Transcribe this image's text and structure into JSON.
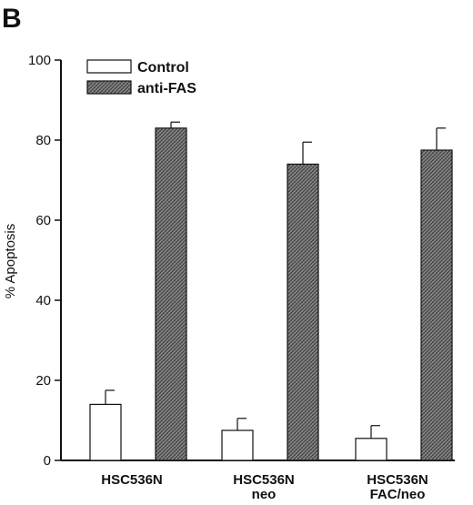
{
  "panel_label": "B",
  "colors": {
    "control_fill": "#ffffff",
    "anti_fas_fill": "#7a7a7a",
    "stroke": "#111111"
  },
  "chart_data": {
    "type": "bar",
    "title": "",
    "xlabel": "",
    "ylabel": "% Apoptosis",
    "ylim": [
      0,
      100
    ],
    "yticks": [
      "0",
      "20",
      "40",
      "60",
      "80",
      "100"
    ],
    "categories": [
      [
        "HSC536N"
      ],
      [
        "HSC536N",
        "neo"
      ],
      [
        "HSC536N",
        "FAC/neo"
      ]
    ],
    "series": [
      {
        "name": "Control",
        "values": [
          14,
          7.5,
          5.5
        ],
        "errors": [
          3.5,
          3,
          3.2
        ],
        "pattern": "none"
      },
      {
        "name": "anti-FAS",
        "values": [
          83,
          74,
          77.5
        ],
        "errors": [
          1.5,
          5.5,
          5.5
        ],
        "pattern": "crosshatch"
      }
    ],
    "grid": false,
    "legend_position": "top-left"
  }
}
